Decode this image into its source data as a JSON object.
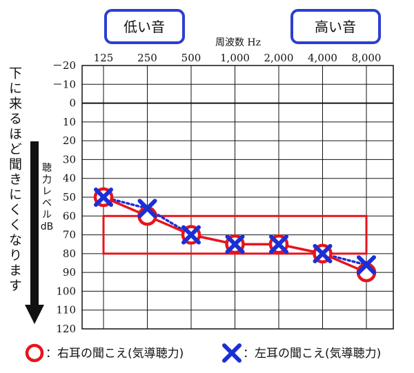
{
  "header": {
    "low_label": "低い音",
    "high_label": "高い音",
    "freq_title": "周波数 Hz"
  },
  "side": {
    "arrow_text": "下に来るほど聞きにくくなります",
    "ylabel_lines": [
      "聴",
      "力",
      "レ",
      "ベ",
      "ル",
      "dB"
    ]
  },
  "legend": {
    "right_ear": "：右耳の聞こえ(気導聴力)",
    "left_ear": "：左耳の聞こえ(気導聴力)"
  },
  "colors": {
    "right_ear": "#e8141b",
    "left_ear": "#1a2fd6",
    "pill_border": "#2b3fd1",
    "grid": "#111111"
  },
  "chart_data": {
    "type": "line",
    "x": [
      "125",
      "250",
      "500",
      "1,000",
      "2,000",
      "4,000",
      "8,000"
    ],
    "y_ticks": [
      "－20",
      "－10",
      "0",
      "10",
      "20",
      "30",
      "40",
      "50",
      "60",
      "70",
      "80",
      "90",
      "100",
      "110",
      "120"
    ],
    "ylim": [
      -20,
      120
    ],
    "y_inverted": true,
    "xlabel": "周波数 Hz",
    "ylabel": "聴力レベルdB",
    "series": [
      {
        "key": "right",
        "marker": "circle",
        "line": "solid",
        "values": [
          50,
          60,
          70,
          75,
          75,
          80,
          90
        ]
      },
      {
        "key": "left",
        "marker": "cross",
        "line": "dotted",
        "values": [
          50,
          56,
          70,
          75,
          75,
          80,
          86
        ]
      }
    ],
    "highlight_range": {
      "x_from": "125",
      "x_to": "8,000",
      "y_from": 60,
      "y_to": 80
    }
  }
}
